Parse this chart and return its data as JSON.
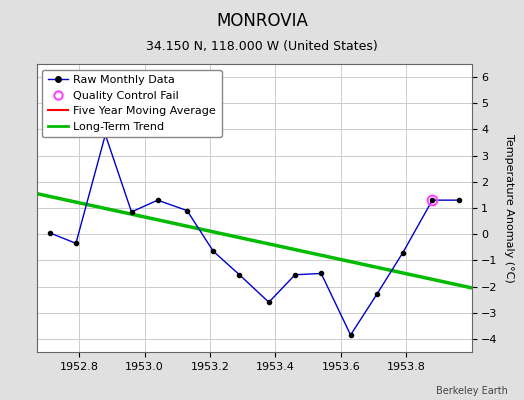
{
  "title": "MONROVIA",
  "subtitle": "34.150 N, 118.000 W (United States)",
  "ylabel": "Temperature Anomaly (°C)",
  "attribution": "Berkeley Earth",
  "xlim": [
    1952.67,
    1954.0
  ],
  "ylim": [
    -4.5,
    6.5
  ],
  "yticks": [
    -4,
    -3,
    -2,
    -1,
    0,
    1,
    2,
    3,
    4,
    5,
    6
  ],
  "xticks": [
    1952.8,
    1953.0,
    1953.2,
    1953.4,
    1953.6,
    1953.8
  ],
  "raw_x": [
    1952.71,
    1952.79,
    1952.88,
    1952.96,
    1953.04,
    1953.13,
    1953.21,
    1953.29,
    1953.38,
    1953.46,
    1953.54,
    1953.63,
    1953.71,
    1953.79,
    1953.88,
    1953.96
  ],
  "raw_y": [
    0.05,
    -0.35,
    3.8,
    0.85,
    1.3,
    0.9,
    -0.65,
    -1.55,
    -2.6,
    -1.55,
    -1.5,
    -3.85,
    -2.3,
    -0.7,
    1.3,
    1.3
  ],
  "qc_fail_x": [
    1953.88
  ],
  "qc_fail_y": [
    1.3
  ],
  "trend_x": [
    1952.67,
    1954.0
  ],
  "trend_y": [
    1.55,
    -2.05
  ],
  "raw_color": "#0000cc",
  "raw_marker_color": "#000000",
  "qc_color": "#ff44ff",
  "trend_color": "#00bb00",
  "ma_color": "#ff0000",
  "bg_color": "#e0e0e0",
  "plot_bg_color": "#ffffff",
  "grid_color": "#cccccc",
  "title_fontsize": 12,
  "subtitle_fontsize": 9,
  "ylabel_fontsize": 8,
  "tick_fontsize": 8,
  "legend_fontsize": 8
}
